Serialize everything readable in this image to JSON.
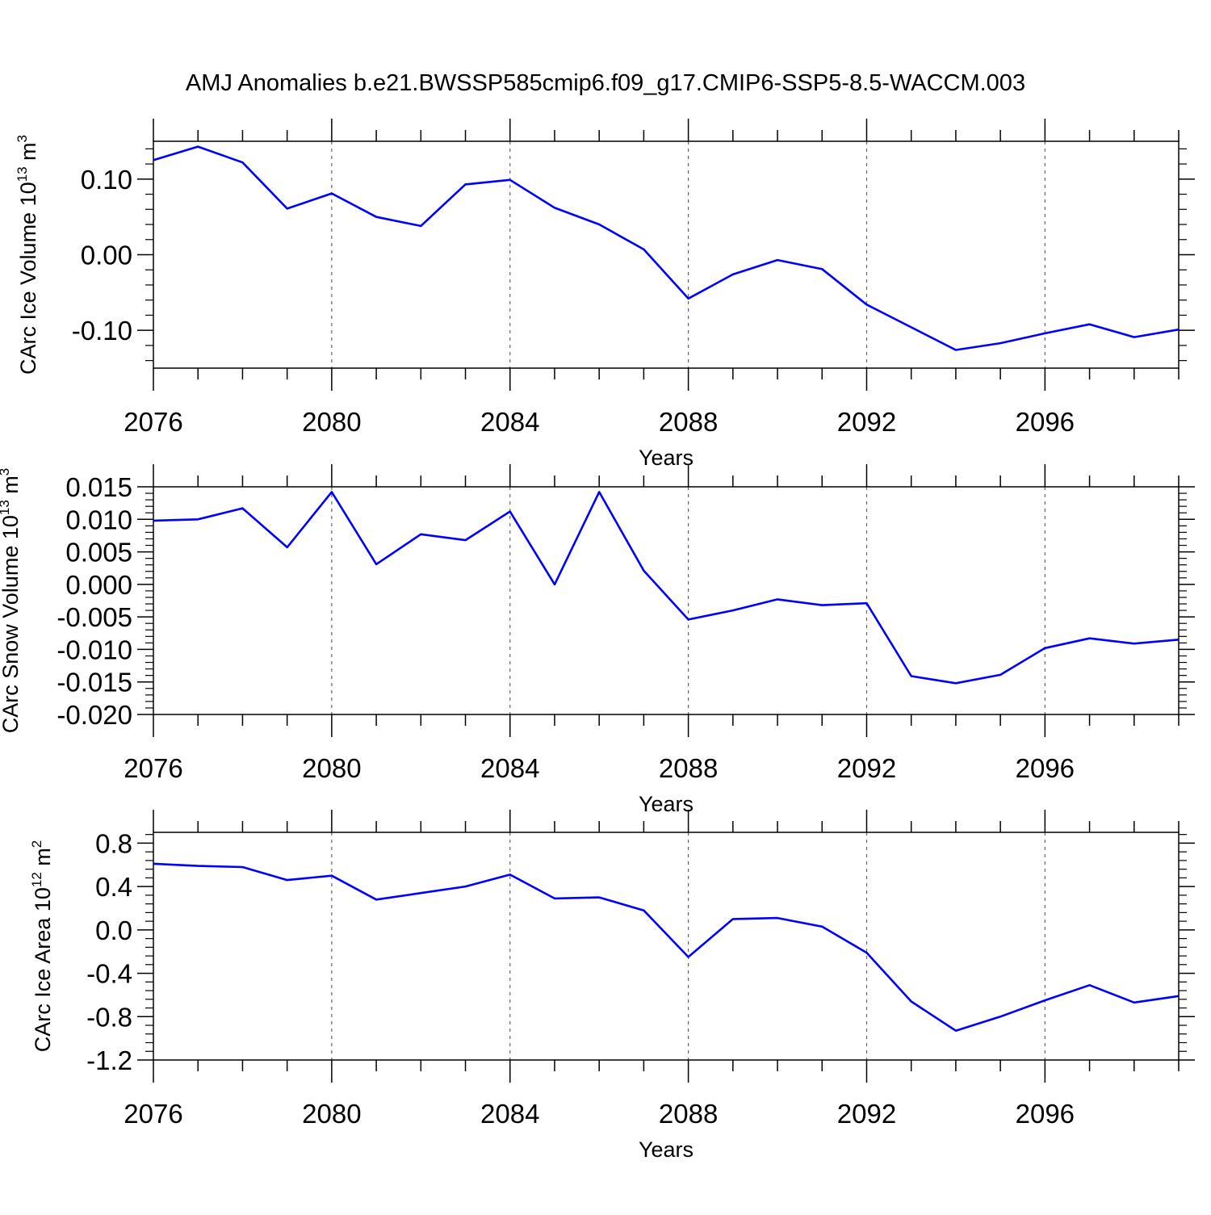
{
  "figure_title": "AMJ Anomalies b.e21.BWSSP585cmip6.f09_g17.CMIP6-SSP5-8.5-WACCM.003",
  "colors": {
    "line": "#0000ff",
    "axis": "#000000",
    "grid": "#666666"
  },
  "chart_data": [
    {
      "type": "line",
      "title": "AMJ Anomalies b.e21.BWSSP585cmip6.f09_g17.CMIP6-SSP5-8.5-WACCM.003",
      "xlabel": "Years",
      "ylabel": {
        "base": "CArc Ice Volume 10",
        "exp": "13",
        "unit": " m",
        "unit_exp": "3"
      },
      "xlim": [
        2076,
        2099
      ],
      "ylim": [
        -0.15,
        0.15
      ],
      "xticks": [
        "2076",
        "2080",
        "2084",
        "2088",
        "2092",
        "2096"
      ],
      "yticks": [
        {
          "value": 0.1,
          "label": "0.10"
        },
        {
          "value": 0.0,
          "label": "0.00"
        },
        {
          "value": -0.1,
          "label": "-0.10"
        }
      ],
      "grid": "vertical-dashed",
      "x": [
        2076,
        2077,
        2078,
        2079,
        2080,
        2081,
        2082,
        2083,
        2084,
        2085,
        2086,
        2087,
        2088,
        2089,
        2090,
        2091,
        2092,
        2093,
        2094,
        2095,
        2096,
        2097,
        2098,
        2099
      ],
      "series": [
        {
          "name": "CArc Ice Volume",
          "values": [
            0.125,
            0.143,
            0.122,
            0.061,
            0.081,
            0.05,
            0.038,
            0.093,
            0.099,
            0.062,
            0.04,
            0.007,
            -0.058,
            -0.026,
            -0.007,
            -0.019,
            -0.066,
            -0.096,
            -0.126,
            -0.117,
            -0.104,
            -0.092,
            -0.109,
            -0.099
          ]
        }
      ]
    },
    {
      "type": "line",
      "xlabel": "Years",
      "ylabel": {
        "base": "CArc Snow Volume 10",
        "exp": "13",
        "unit": " m",
        "unit_exp": "3"
      },
      "xlim": [
        2076,
        2099
      ],
      "ylim": [
        -0.02,
        0.015
      ],
      "xticks": [
        "2076",
        "2080",
        "2084",
        "2088",
        "2092",
        "2096"
      ],
      "yticks": [
        {
          "value": 0.015,
          "label": "0.015"
        },
        {
          "value": 0.01,
          "label": "0.010"
        },
        {
          "value": 0.005,
          "label": "0.005"
        },
        {
          "value": 0.0,
          "label": "0.000"
        },
        {
          "value": -0.005,
          "label": "-0.005"
        },
        {
          "value": -0.01,
          "label": "-0.010"
        },
        {
          "value": -0.015,
          "label": "-0.015"
        },
        {
          "value": -0.02,
          "label": "-0.020"
        }
      ],
      "grid": "vertical-dashed",
      "x": [
        2076,
        2077,
        2078,
        2079,
        2080,
        2081,
        2082,
        2083,
        2084,
        2085,
        2086,
        2087,
        2088,
        2089,
        2090,
        2091,
        2092,
        2093,
        2094,
        2095,
        2096,
        2097,
        2098,
        2099
      ],
      "series": [
        {
          "name": "CArc Snow Volume",
          "values": [
            0.0098,
            0.01,
            0.0117,
            0.0057,
            0.0142,
            0.0031,
            0.0077,
            0.0068,
            0.0112,
            0.0,
            0.0142,
            0.0021,
            -0.0054,
            -0.004,
            -0.0023,
            -0.0032,
            -0.0029,
            -0.0141,
            -0.0152,
            -0.0139,
            -0.0098,
            -0.0083,
            -0.0091,
            -0.0085
          ]
        }
      ]
    },
    {
      "type": "line",
      "xlabel": "Years",
      "ylabel": {
        "base": "CArc Ice Area 10",
        "exp": "12",
        "unit": " m",
        "unit_exp": "2"
      },
      "xlim": [
        2076,
        2099
      ],
      "ylim": [
        -1.2,
        0.9
      ],
      "xticks": [
        "2076",
        "2080",
        "2084",
        "2088",
        "2092",
        "2096"
      ],
      "yticks": [
        {
          "value": 0.8,
          "label": "0.8"
        },
        {
          "value": 0.4,
          "label": "0.4"
        },
        {
          "value": 0.0,
          "label": "0.0"
        },
        {
          "value": -0.4,
          "label": "-0.4"
        },
        {
          "value": -0.8,
          "label": "-0.8"
        },
        {
          "value": -1.2,
          "label": "-1.2"
        }
      ],
      "grid": "vertical-dashed",
      "x": [
        2076,
        2077,
        2078,
        2079,
        2080,
        2081,
        2082,
        2083,
        2084,
        2085,
        2086,
        2087,
        2088,
        2089,
        2090,
        2091,
        2092,
        2093,
        2094,
        2095,
        2096,
        2097,
        2098,
        2099
      ],
      "series": [
        {
          "name": "CArc Ice Area",
          "values": [
            0.61,
            0.59,
            0.58,
            0.46,
            0.5,
            0.28,
            0.34,
            0.4,
            0.51,
            0.29,
            0.3,
            0.18,
            -0.25,
            0.1,
            0.11,
            0.03,
            -0.21,
            -0.66,
            -0.93,
            -0.8,
            -0.65,
            -0.51,
            -0.67,
            -0.61
          ]
        }
      ]
    }
  ]
}
